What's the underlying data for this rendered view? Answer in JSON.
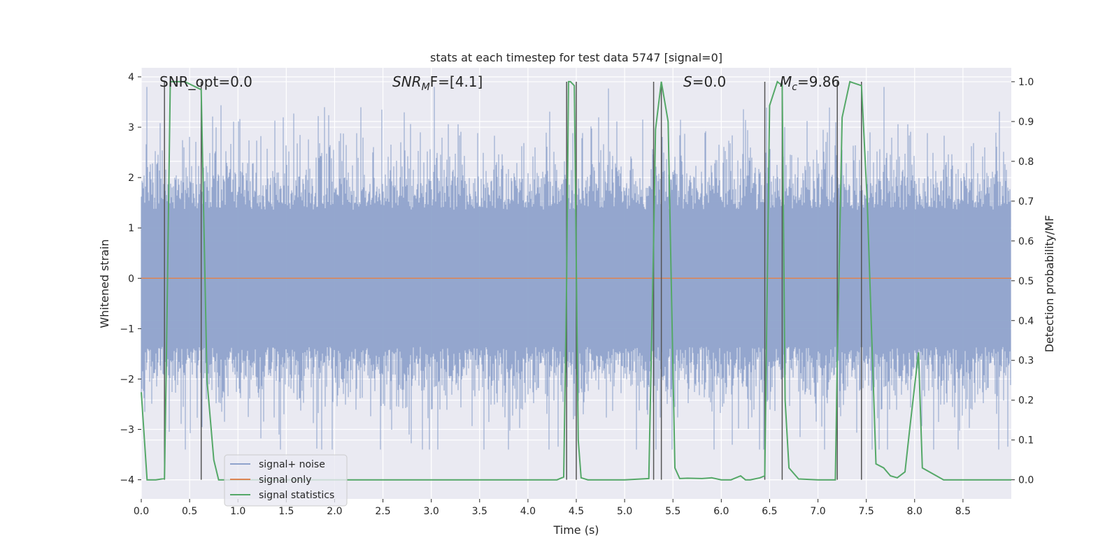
{
  "chart_data": {
    "type": "line",
    "title": "stats at each timestep for test data 5747 [signal=0]",
    "xlabel": "Time (s)",
    "ylabel_left": "Whitened strain",
    "ylabel_right": "Detection probability/MF",
    "xlim": [
      0,
      9
    ],
    "ylim_left": [
      -4.38,
      4.18
    ],
    "ylim_right": [
      -0.048,
      1.035
    ],
    "x_ticks": [
      0.0,
      0.5,
      1.0,
      1.5,
      2.0,
      2.5,
      3.0,
      3.5,
      4.0,
      4.5,
      5.0,
      5.5,
      6.0,
      6.5,
      7.0,
      7.5,
      8.0,
      8.5
    ],
    "x_tick_labels": [
      "0.0",
      "0.5",
      "1.0",
      "1.5",
      "2.0",
      "2.5",
      "3.0",
      "3.5",
      "4.0",
      "4.5",
      "5.0",
      "5.5",
      "6.0",
      "6.5",
      "7.0",
      "7.5",
      "8.0",
      "8.5"
    ],
    "y_left_ticks": [
      -4,
      -3,
      -2,
      -1,
      0,
      1,
      2,
      3,
      4
    ],
    "y_left_tick_labels": [
      "−4",
      "−3",
      "−2",
      "−1",
      "0",
      "1",
      "2",
      "3",
      "4"
    ],
    "y_right_ticks": [
      0.0,
      0.1,
      0.2,
      0.3,
      0.4,
      0.5,
      0.6,
      0.7,
      0.8,
      0.9,
      1.0
    ],
    "y_right_tick_labels": [
      "0.0",
      "0.1",
      "0.2",
      "0.3",
      "0.4",
      "0.5",
      "0.6",
      "0.7",
      "0.8",
      "0.9",
      "1.0"
    ],
    "annotations": {
      "snr_opt": "SNR_opt=0.0",
      "snr_mf_base": "SNR",
      "snr_mf_sub": "M",
      "snr_mf_rest": "F=[4.1]",
      "s_italic": "S",
      "s_rest": "=0.0",
      "mc_base": "M",
      "mc_sub": "c",
      "mc_rest": "=9.86"
    },
    "legend": {
      "position": "lower-left",
      "entries": [
        {
          "label": "signal+ noise",
          "color": "#8fa3cc"
        },
        {
          "label": "signal only",
          "color": "#dd8452"
        },
        {
          "label": "signal statistics",
          "color": "#55a868"
        }
      ]
    },
    "series": [
      {
        "name": "signal+ noise",
        "axis": "left",
        "color": "#8fa3cc",
        "description": "whitened strain noise, typical envelope ±1.6, peaks to about ±3.8",
        "envelope": 1.6,
        "peak_max": 3.8,
        "peak_min": -3.4
      },
      {
        "name": "signal only",
        "axis": "left",
        "color": "#dd8452",
        "x": [
          0,
          9
        ],
        "y": [
          0,
          0
        ]
      },
      {
        "name": "signal statistics",
        "axis": "right",
        "color": "#55a868",
        "x": [
          0.0,
          0.06,
          0.15,
          0.24,
          0.26,
          0.3,
          0.33,
          0.45,
          0.62,
          0.68,
          0.75,
          0.8,
          0.9,
          1.0,
          1.5,
          2.0,
          2.5,
          3.0,
          3.5,
          4.0,
          4.3,
          4.37,
          4.4,
          4.42,
          4.44,
          4.48,
          4.52,
          4.55,
          4.62,
          4.75,
          5.0,
          5.25,
          5.3,
          5.32,
          5.38,
          5.45,
          5.52,
          5.57,
          5.65,
          5.8,
          5.9,
          6.0,
          6.1,
          6.2,
          6.25,
          6.3,
          6.4,
          6.45,
          6.5,
          6.58,
          6.63,
          6.66,
          6.7,
          6.8,
          7.0,
          7.18,
          7.2,
          7.25,
          7.33,
          7.45,
          7.51,
          7.6,
          7.68,
          7.75,
          7.82,
          7.9,
          7.95,
          8.04,
          8.08,
          8.3,
          8.5,
          9.0
        ],
        "y": [
          0.22,
          0.0,
          0.0,
          0.003,
          0.3,
          1.0,
          1.0,
          1.0,
          0.98,
          0.25,
          0.05,
          0.0,
          0.0,
          0.0,
          0.0,
          0.0,
          0.0,
          0.0,
          0.0,
          0.0,
          0.0,
          0.007,
          0.5,
          1.0,
          1.0,
          0.99,
          0.1,
          0.005,
          0.0,
          0.0,
          0.0,
          0.003,
          0.6,
          0.88,
          1.0,
          0.9,
          0.03,
          0.003,
          0.004,
          0.003,
          0.005,
          0.0,
          0.0,
          0.01,
          0.0,
          0.0,
          0.005,
          0.01,
          0.94,
          1.0,
          0.99,
          0.2,
          0.03,
          0.002,
          0.0,
          0.0,
          0.3,
          0.91,
          1.0,
          0.99,
          0.7,
          0.04,
          0.03,
          0.01,
          0.005,
          0.02,
          0.13,
          0.32,
          0.03,
          0.0,
          0.0,
          0.0
        ]
      }
    ],
    "vertical_lines": [
      {
        "x": 0.24,
        "y0": 0.0,
        "y1": 1.0
      },
      {
        "x": 0.62,
        "y0": 0.0,
        "y1": 1.0
      },
      {
        "x": 4.4,
        "y0": 0.0,
        "y1": 1.0
      },
      {
        "x": 4.5,
        "y0": 0.0,
        "y1": 1.0
      },
      {
        "x": 5.3,
        "y0": 0.0,
        "y1": 1.0
      },
      {
        "x": 5.38,
        "y0": 0.0,
        "y1": 1.0
      },
      {
        "x": 6.45,
        "y0": 0.0,
        "y1": 1.0
      },
      {
        "x": 6.63,
        "y0": 0.0,
        "y1": 1.0
      },
      {
        "x": 7.2,
        "y0": 0.0,
        "y1": 1.0
      },
      {
        "x": 7.45,
        "y0": 0.0,
        "y1": 1.0
      }
    ],
    "grid": true
  }
}
